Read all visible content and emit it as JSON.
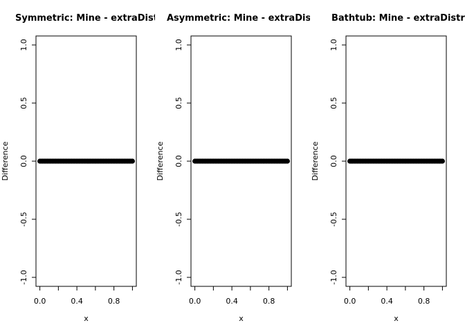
{
  "chart_data": [
    {
      "type": "scatter",
      "title": "Symmetric: Mine - extraDistr",
      "xlabel": "x",
      "ylabel": "Difference",
      "xlim": [
        0,
        1
      ],
      "ylim": [
        -1,
        1
      ],
      "x_ticks": [
        "0.0",
        "0.4",
        "0.8"
      ],
      "y_ticks": [
        "-1.0",
        "-0.5",
        "0.0",
        "0.5",
        "1.0"
      ],
      "points": {
        "x_start": 0.0,
        "x_end": 1.0,
        "count": 100,
        "y": 0
      }
    },
    {
      "type": "scatter",
      "title": "Asymmetric: Mine - extraDistr",
      "xlabel": "x",
      "ylabel": "Difference",
      "xlim": [
        0,
        1
      ],
      "ylim": [
        -1,
        1
      ],
      "x_ticks": [
        "0.0",
        "0.4",
        "0.8"
      ],
      "y_ticks": [
        "-1.0",
        "-0.5",
        "0.0",
        "0.5",
        "1.0"
      ],
      "points": {
        "x_start": 0.0,
        "x_end": 1.0,
        "count": 100,
        "y": 0
      }
    },
    {
      "type": "scatter",
      "title": "Bathtub: Mine - extraDistr",
      "xlabel": "x",
      "ylabel": "Difference",
      "xlim": [
        0,
        1
      ],
      "ylim": [
        -1,
        1
      ],
      "x_ticks": [
        "0.0",
        "0.4",
        "0.8"
      ],
      "y_ticks": [
        "-1.0",
        "-0.5",
        "0.0",
        "0.5",
        "1.0"
      ],
      "points": {
        "x_start": 0.0,
        "x_end": 1.0,
        "count": 100,
        "y": 0
      }
    }
  ]
}
